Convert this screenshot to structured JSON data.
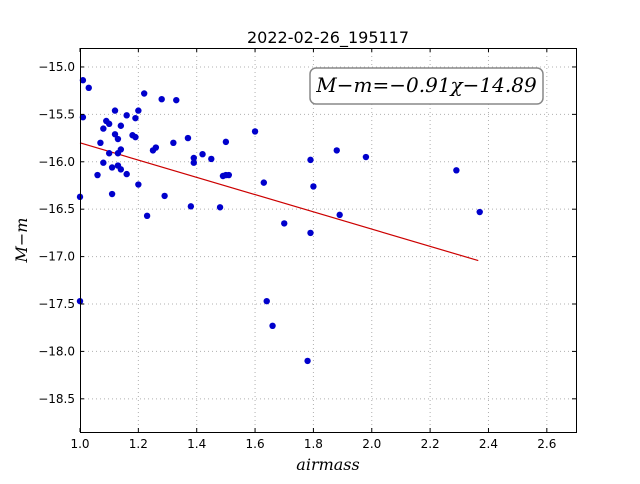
{
  "chart_data": {
    "type": "scatter",
    "title": "2022-02-26_195117",
    "xlabel": "airmass",
    "ylabel": "M−m",
    "xlim": [
      1.0,
      2.7
    ],
    "ylim": [
      -18.85,
      -14.8
    ],
    "y_inverted": false,
    "grid": true,
    "x_ticks": [
      1.0,
      1.2,
      1.4,
      1.6,
      1.8,
      2.0,
      2.2,
      2.4,
      2.6
    ],
    "x_tick_labels": [
      "1.0",
      "1.2",
      "1.4",
      "1.6",
      "1.8",
      "2.0",
      "2.2",
      "2.4",
      "2.6"
    ],
    "y_ticks": [
      -15.0,
      -15.5,
      -16.0,
      -16.5,
      -17.0,
      -17.5,
      -18.0,
      -18.5
    ],
    "y_tick_labels": [
      "−15.0",
      "−15.5",
      "−16.0",
      "−16.5",
      "−17.0",
      "−17.5",
      "−18.0",
      "−18.5"
    ],
    "annotation": "M−m=−0.91χ−14.89",
    "annotation_placement": "top-right",
    "point_color": "#0000cc",
    "fit_color": "#cc0000",
    "fit": {
      "slope": -0.91,
      "intercept": -14.89,
      "x_range": [
        1.0,
        2.365
      ]
    },
    "points": [
      {
        "x": 1.0,
        "y": -16.37
      },
      {
        "x": 1.0,
        "y": -17.47
      },
      {
        "x": 1.01,
        "y": -15.14
      },
      {
        "x": 1.01,
        "y": -15.53
      },
      {
        "x": 1.03,
        "y": -15.22
      },
      {
        "x": 1.06,
        "y": -16.14
      },
      {
        "x": 1.07,
        "y": -15.8
      },
      {
        "x": 1.08,
        "y": -15.65
      },
      {
        "x": 1.08,
        "y": -16.01
      },
      {
        "x": 1.09,
        "y": -15.57
      },
      {
        "x": 1.1,
        "y": -15.6
      },
      {
        "x": 1.1,
        "y": -15.91
      },
      {
        "x": 1.11,
        "y": -16.34
      },
      {
        "x": 1.11,
        "y": -16.06
      },
      {
        "x": 1.12,
        "y": -15.46
      },
      {
        "x": 1.12,
        "y": -15.71
      },
      {
        "x": 1.13,
        "y": -15.76
      },
      {
        "x": 1.13,
        "y": -15.91
      },
      {
        "x": 1.13,
        "y": -16.04
      },
      {
        "x": 1.14,
        "y": -15.62
      },
      {
        "x": 1.14,
        "y": -15.87
      },
      {
        "x": 1.14,
        "y": -16.08
      },
      {
        "x": 1.16,
        "y": -16.13
      },
      {
        "x": 1.16,
        "y": -15.51
      },
      {
        "x": 1.18,
        "y": -15.72
      },
      {
        "x": 1.19,
        "y": -15.74
      },
      {
        "x": 1.19,
        "y": -15.54
      },
      {
        "x": 1.2,
        "y": -15.46
      },
      {
        "x": 1.2,
        "y": -16.24
      },
      {
        "x": 1.22,
        "y": -15.28
      },
      {
        "x": 1.23,
        "y": -16.57
      },
      {
        "x": 1.25,
        "y": -15.88
      },
      {
        "x": 1.26,
        "y": -15.85
      },
      {
        "x": 1.28,
        "y": -15.34
      },
      {
        "x": 1.29,
        "y": -16.36
      },
      {
        "x": 1.32,
        "y": -15.8
      },
      {
        "x": 1.33,
        "y": -15.35
      },
      {
        "x": 1.37,
        "y": -15.75
      },
      {
        "x": 1.38,
        "y": -16.47
      },
      {
        "x": 1.39,
        "y": -15.96
      },
      {
        "x": 1.39,
        "y": -16.01
      },
      {
        "x": 1.42,
        "y": -15.92
      },
      {
        "x": 1.45,
        "y": -15.97
      },
      {
        "x": 1.48,
        "y": -16.48
      },
      {
        "x": 1.49,
        "y": -16.15
      },
      {
        "x": 1.5,
        "y": -16.14
      },
      {
        "x": 1.5,
        "y": -15.79
      },
      {
        "x": 1.51,
        "y": -16.14
      },
      {
        "x": 1.6,
        "y": -15.68
      },
      {
        "x": 1.63,
        "y": -16.22
      },
      {
        "x": 1.64,
        "y": -17.47
      },
      {
        "x": 1.66,
        "y": -17.73
      },
      {
        "x": 1.7,
        "y": -16.65
      },
      {
        "x": 1.78,
        "y": -18.1
      },
      {
        "x": 1.79,
        "y": -16.75
      },
      {
        "x": 1.79,
        "y": -15.98
      },
      {
        "x": 1.8,
        "y": -16.26
      },
      {
        "x": 1.88,
        "y": -15.88
      },
      {
        "x": 1.89,
        "y": -16.56
      },
      {
        "x": 1.98,
        "y": -15.95
      },
      {
        "x": 2.29,
        "y": -16.09
      },
      {
        "x": 2.37,
        "y": -16.53
      }
    ]
  }
}
